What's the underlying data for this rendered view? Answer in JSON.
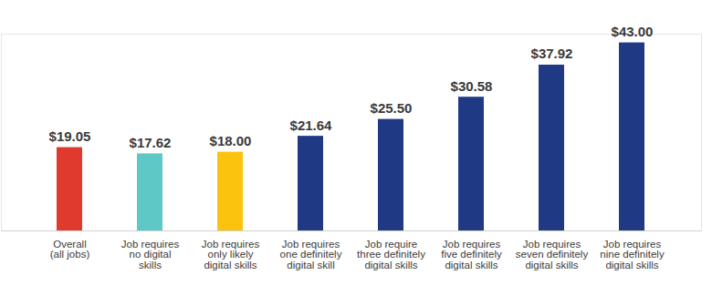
{
  "chart_data": {
    "type": "bar",
    "categories": [
      "Overall\n(all jobs)",
      "Job requires\nno digital\nskills",
      "Job requires\nonly likely\ndigital skills",
      "Job requires\none definitely\ndigital skill",
      "Job require\nthree definitely\ndigital skills",
      "Job requires\nfive definitely\ndigital skills",
      "Job requires\nseven definitely\ndigital skills",
      "Job requires\nnine definitely\ndigital skills"
    ],
    "values": [
      19.05,
      17.62,
      18.0,
      21.64,
      25.5,
      30.58,
      37.92,
      43.0
    ],
    "value_labels": [
      "$19.05",
      "$17.62",
      "$18.00",
      "$21.64",
      "$25.50",
      "$30.58",
      "$37.92",
      "$43.00"
    ],
    "colors": [
      "#e03a2f",
      "#5ec8c6",
      "#fbc30d",
      "#1f3984",
      "#1f3984",
      "#1f3984",
      "#1f3984",
      "#1f3984"
    ],
    "ylim": [
      0,
      45
    ],
    "data_labels": true,
    "tick_labels": "x"
  }
}
